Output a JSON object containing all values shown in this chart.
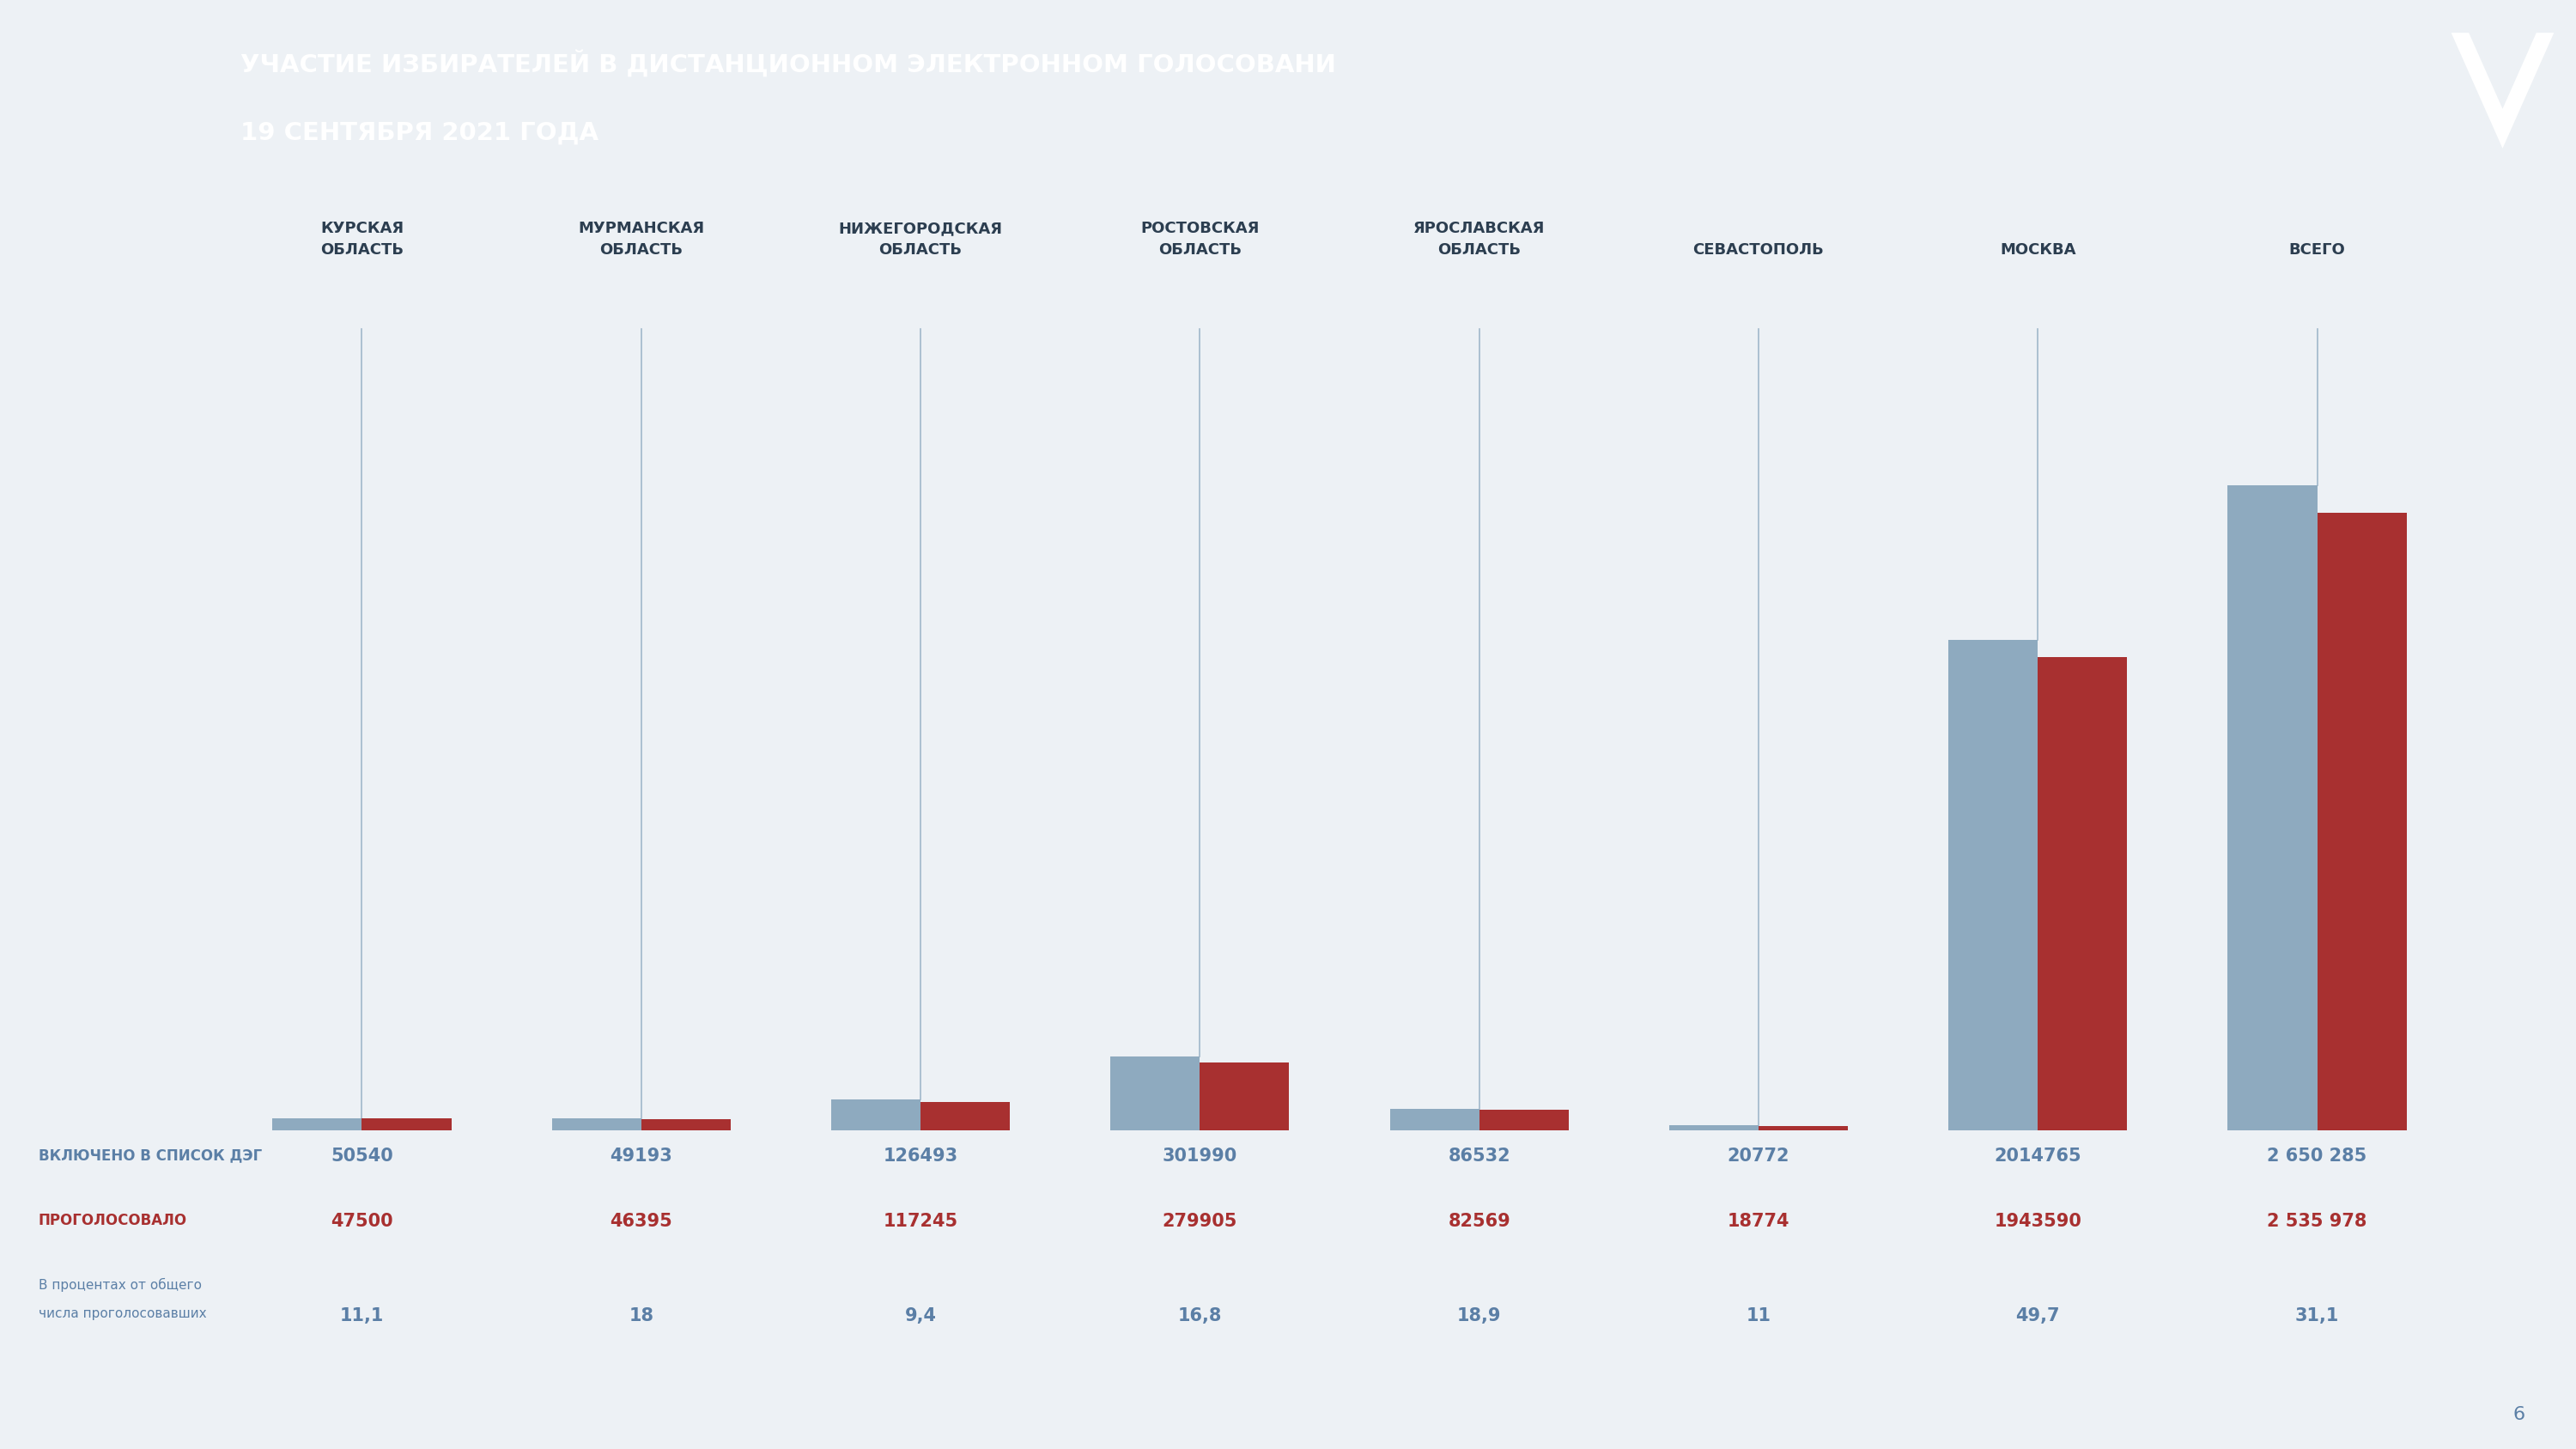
{
  "title_line1": "УЧАСТИЕ ИЗБИРАТЕЛЕЙ В ДИСТАНЦИОННОМ ЭЛЕКТРОННОМ ГОЛОСОВАНИ",
  "title_line2": "19 СЕНТЯБРЯ 2021 ГОДА",
  "background_color": "#edf1f5",
  "header_color": "#5b7fa6",
  "categories": [
    "КУРСКАЯ\nОБЛАСТЬ",
    "МУРМАНСКАЯ\nОБЛАСТЬ",
    "НИЖЕГОРОДСКАЯ\nОБЛАСТЬ",
    "РОСТОВСКАЯ\nОБЛАСТЬ",
    "ЯРОСЛАВСКАЯ\nОБЛАСТЬ",
    "СЕВАСТОПОЛЬ",
    "МОСКВА",
    "ВСЕГО"
  ],
  "included": [
    50540,
    49193,
    126493,
    301990,
    86532,
    20772,
    2014765,
    2650285
  ],
  "voted": [
    47500,
    46395,
    117245,
    279905,
    82569,
    18774,
    1943590,
    2535978
  ],
  "percent": [
    "11,1",
    "18",
    "9,4",
    "16,8",
    "18,9",
    "11",
    "49,7",
    "31,1"
  ],
  "included_labels": [
    "50540",
    "49193",
    "126493",
    "301990",
    "86532",
    "20772",
    "2014765",
    "2 650 285"
  ],
  "voted_labels": [
    "47500",
    "46395",
    "117245",
    "279905",
    "82569",
    "18774",
    "1943590",
    "2 535 978"
  ],
  "bar_color_blue": "#8eaabf",
  "bar_color_red": "#a83030",
  "line_color": "#8eaabf",
  "text_blue": "#5b7fa6",
  "text_red": "#a83030",
  "label_included": "ВКЛЮЧЕНО В СПИСОК ДЭГ",
  "label_voted": "ПРОГОЛОСОВАЛО",
  "label_percent_line1": "В процентах от общего",
  "label_percent_line2": "числа проголосовавших",
  "page_number": "6"
}
